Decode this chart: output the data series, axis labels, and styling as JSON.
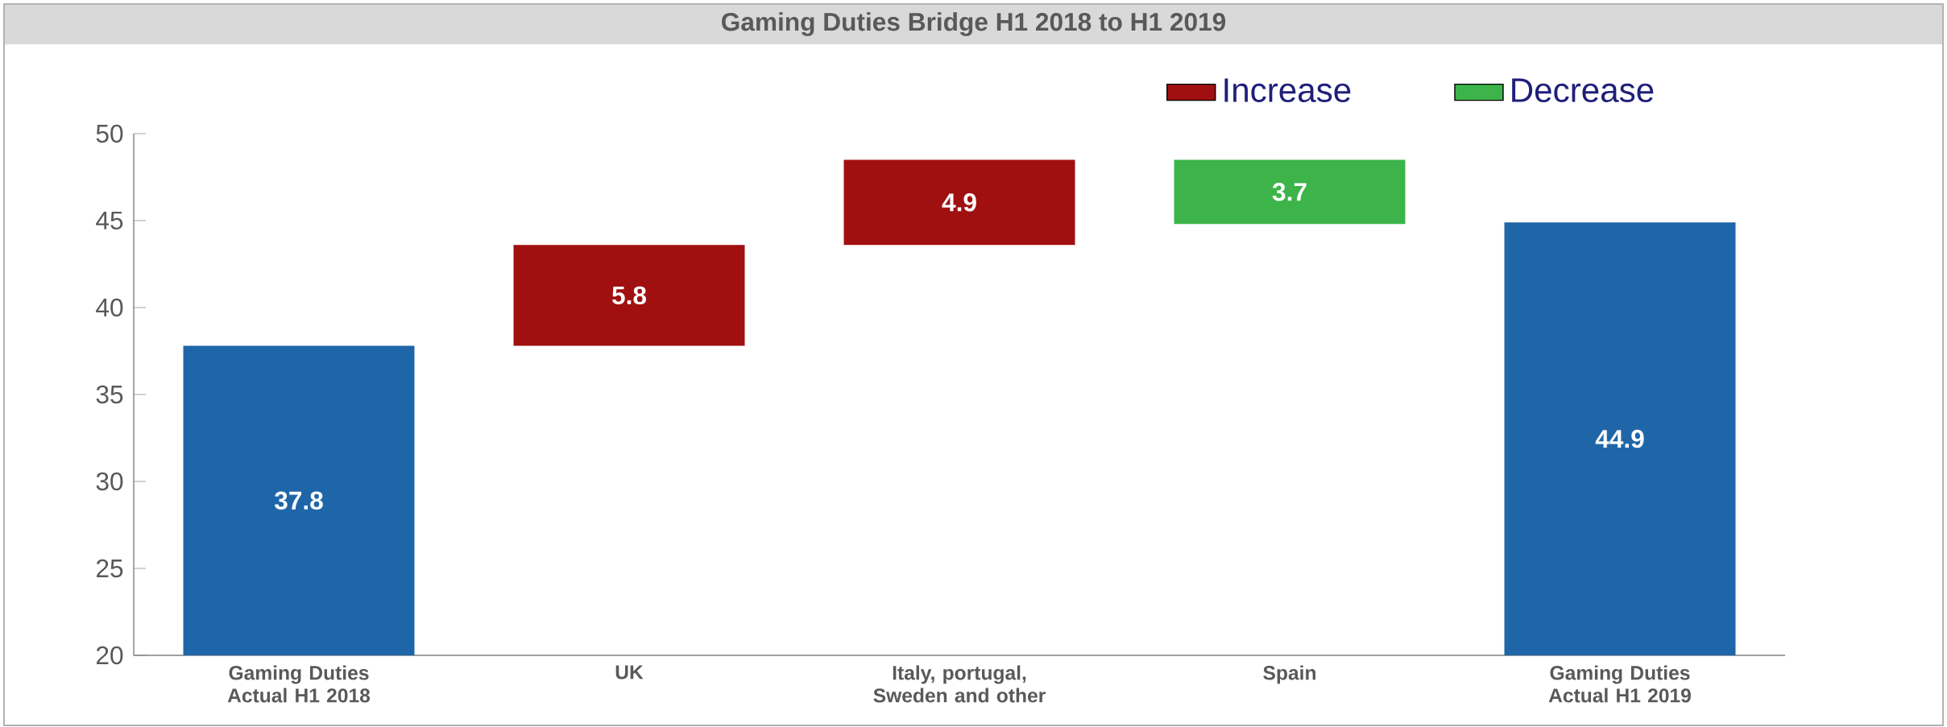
{
  "chart_data": {
    "type": "bar",
    "title": "Gaming Duties Bridge H1 2018 to H1 2019",
    "categories": [
      "Gaming Duties Actual H1 2018",
      "UK",
      "Italy, portugal, Sweden and other",
      "Spain",
      "Gaming Duties Actual H1 2019"
    ],
    "series": [
      {
        "color": "#1f66a8",
        "values": [
          37.8,
          null,
          null,
          null,
          44.9
        ]
      },
      {
        "name": "Increase",
        "color": "#a01010",
        "values": [
          null,
          5.8,
          4.9,
          null,
          null
        ],
        "base": [
          null,
          37.8,
          43.6,
          null,
          null
        ]
      },
      {
        "name": "Decrease",
        "color": "#3cb44a",
        "values": [
          null,
          null,
          null,
          3.7,
          null
        ],
        "base": [
          null,
          null,
          null,
          44.8,
          null
        ]
      }
    ],
    "ylim": [
      20,
      50
    ],
    "yticks": [
      20,
      25,
      30,
      35,
      40,
      45,
      50
    ],
    "data_labels": true,
    "legend": "top right"
  }
}
